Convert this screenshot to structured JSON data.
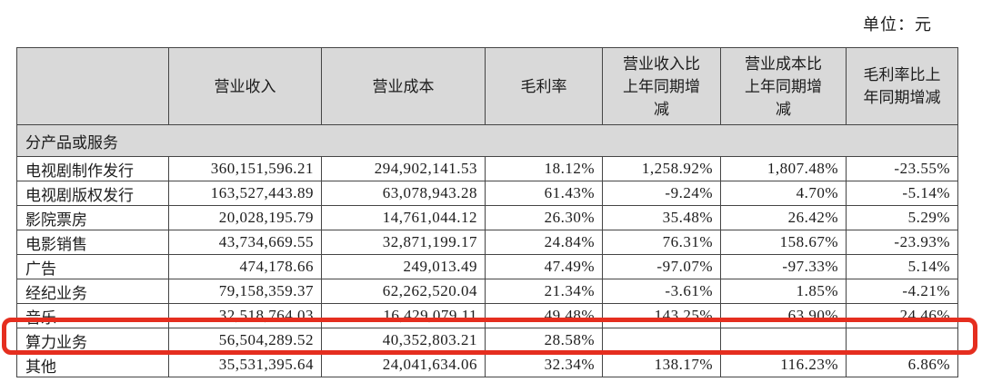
{
  "unit_label": "单位：元",
  "colors": {
    "header_bg": "#d9d9d9",
    "table_border": "#454545",
    "highlight_red": "#e52e1f"
  },
  "table": {
    "headers": [
      "",
      "营业收入",
      "营业成本",
      "毛利率",
      "营业收入比\n上年同期增\n减",
      "营业成本比\n上年同期增\n减",
      "毛利率比上\n年同期增减"
    ],
    "group_row_label": "分产品或服务",
    "rows": [
      {
        "label": "电视剧制作发行",
        "revenue": "360,151,596.21",
        "cost": "294,902,141.53",
        "margin": "18.12%",
        "revenue_change": "1,258.92%",
        "cost_change": "1,807.48%",
        "margin_change": "-23.55%",
        "highlighted": false
      },
      {
        "label": "电视剧版权发行",
        "revenue": "163,527,443.89",
        "cost": "63,078,943.28",
        "margin": "61.43%",
        "revenue_change": "-9.24%",
        "cost_change": "4.70%",
        "margin_change": "-5.14%",
        "highlighted": false
      },
      {
        "label": "影院票房",
        "revenue": "20,028,195.79",
        "cost": "14,761,044.12",
        "margin": "26.30%",
        "revenue_change": "35.48%",
        "cost_change": "26.42%",
        "margin_change": "5.29%",
        "highlighted": false
      },
      {
        "label": "电影销售",
        "revenue": "43,734,669.55",
        "cost": "32,871,199.17",
        "margin": "24.84%",
        "revenue_change": "76.31%",
        "cost_change": "158.67%",
        "margin_change": "-23.93%",
        "highlighted": false
      },
      {
        "label": "广告",
        "revenue": "474,178.66",
        "cost": "249,013.49",
        "margin": "47.49%",
        "revenue_change": "-97.07%",
        "cost_change": "-97.33%",
        "margin_change": "5.14%",
        "highlighted": false
      },
      {
        "label": "经纪业务",
        "revenue": "79,158,359.37",
        "cost": "62,262,520.04",
        "margin": "21.34%",
        "revenue_change": "-3.61%",
        "cost_change": "1.85%",
        "margin_change": "-4.21%",
        "highlighted": false
      },
      {
        "label": "音乐",
        "revenue": "32,518,764.03",
        "cost": "16,429,079.11",
        "margin": "49.48%",
        "revenue_change": "143.25%",
        "cost_change": "63.90%",
        "margin_change": "24.46%",
        "highlighted": false
      },
      {
        "label": "算力业务",
        "revenue": "56,504,289.52",
        "cost": "40,352,803.21",
        "margin": "28.58%",
        "revenue_change": "",
        "cost_change": "",
        "margin_change": "",
        "highlighted": true
      },
      {
        "label": "其他",
        "revenue": "35,531,395.64",
        "cost": "24,041,634.06",
        "margin": "32.34%",
        "revenue_change": "138.17%",
        "cost_change": "116.23%",
        "margin_change": "6.86%",
        "highlighted": false
      }
    ]
  }
}
